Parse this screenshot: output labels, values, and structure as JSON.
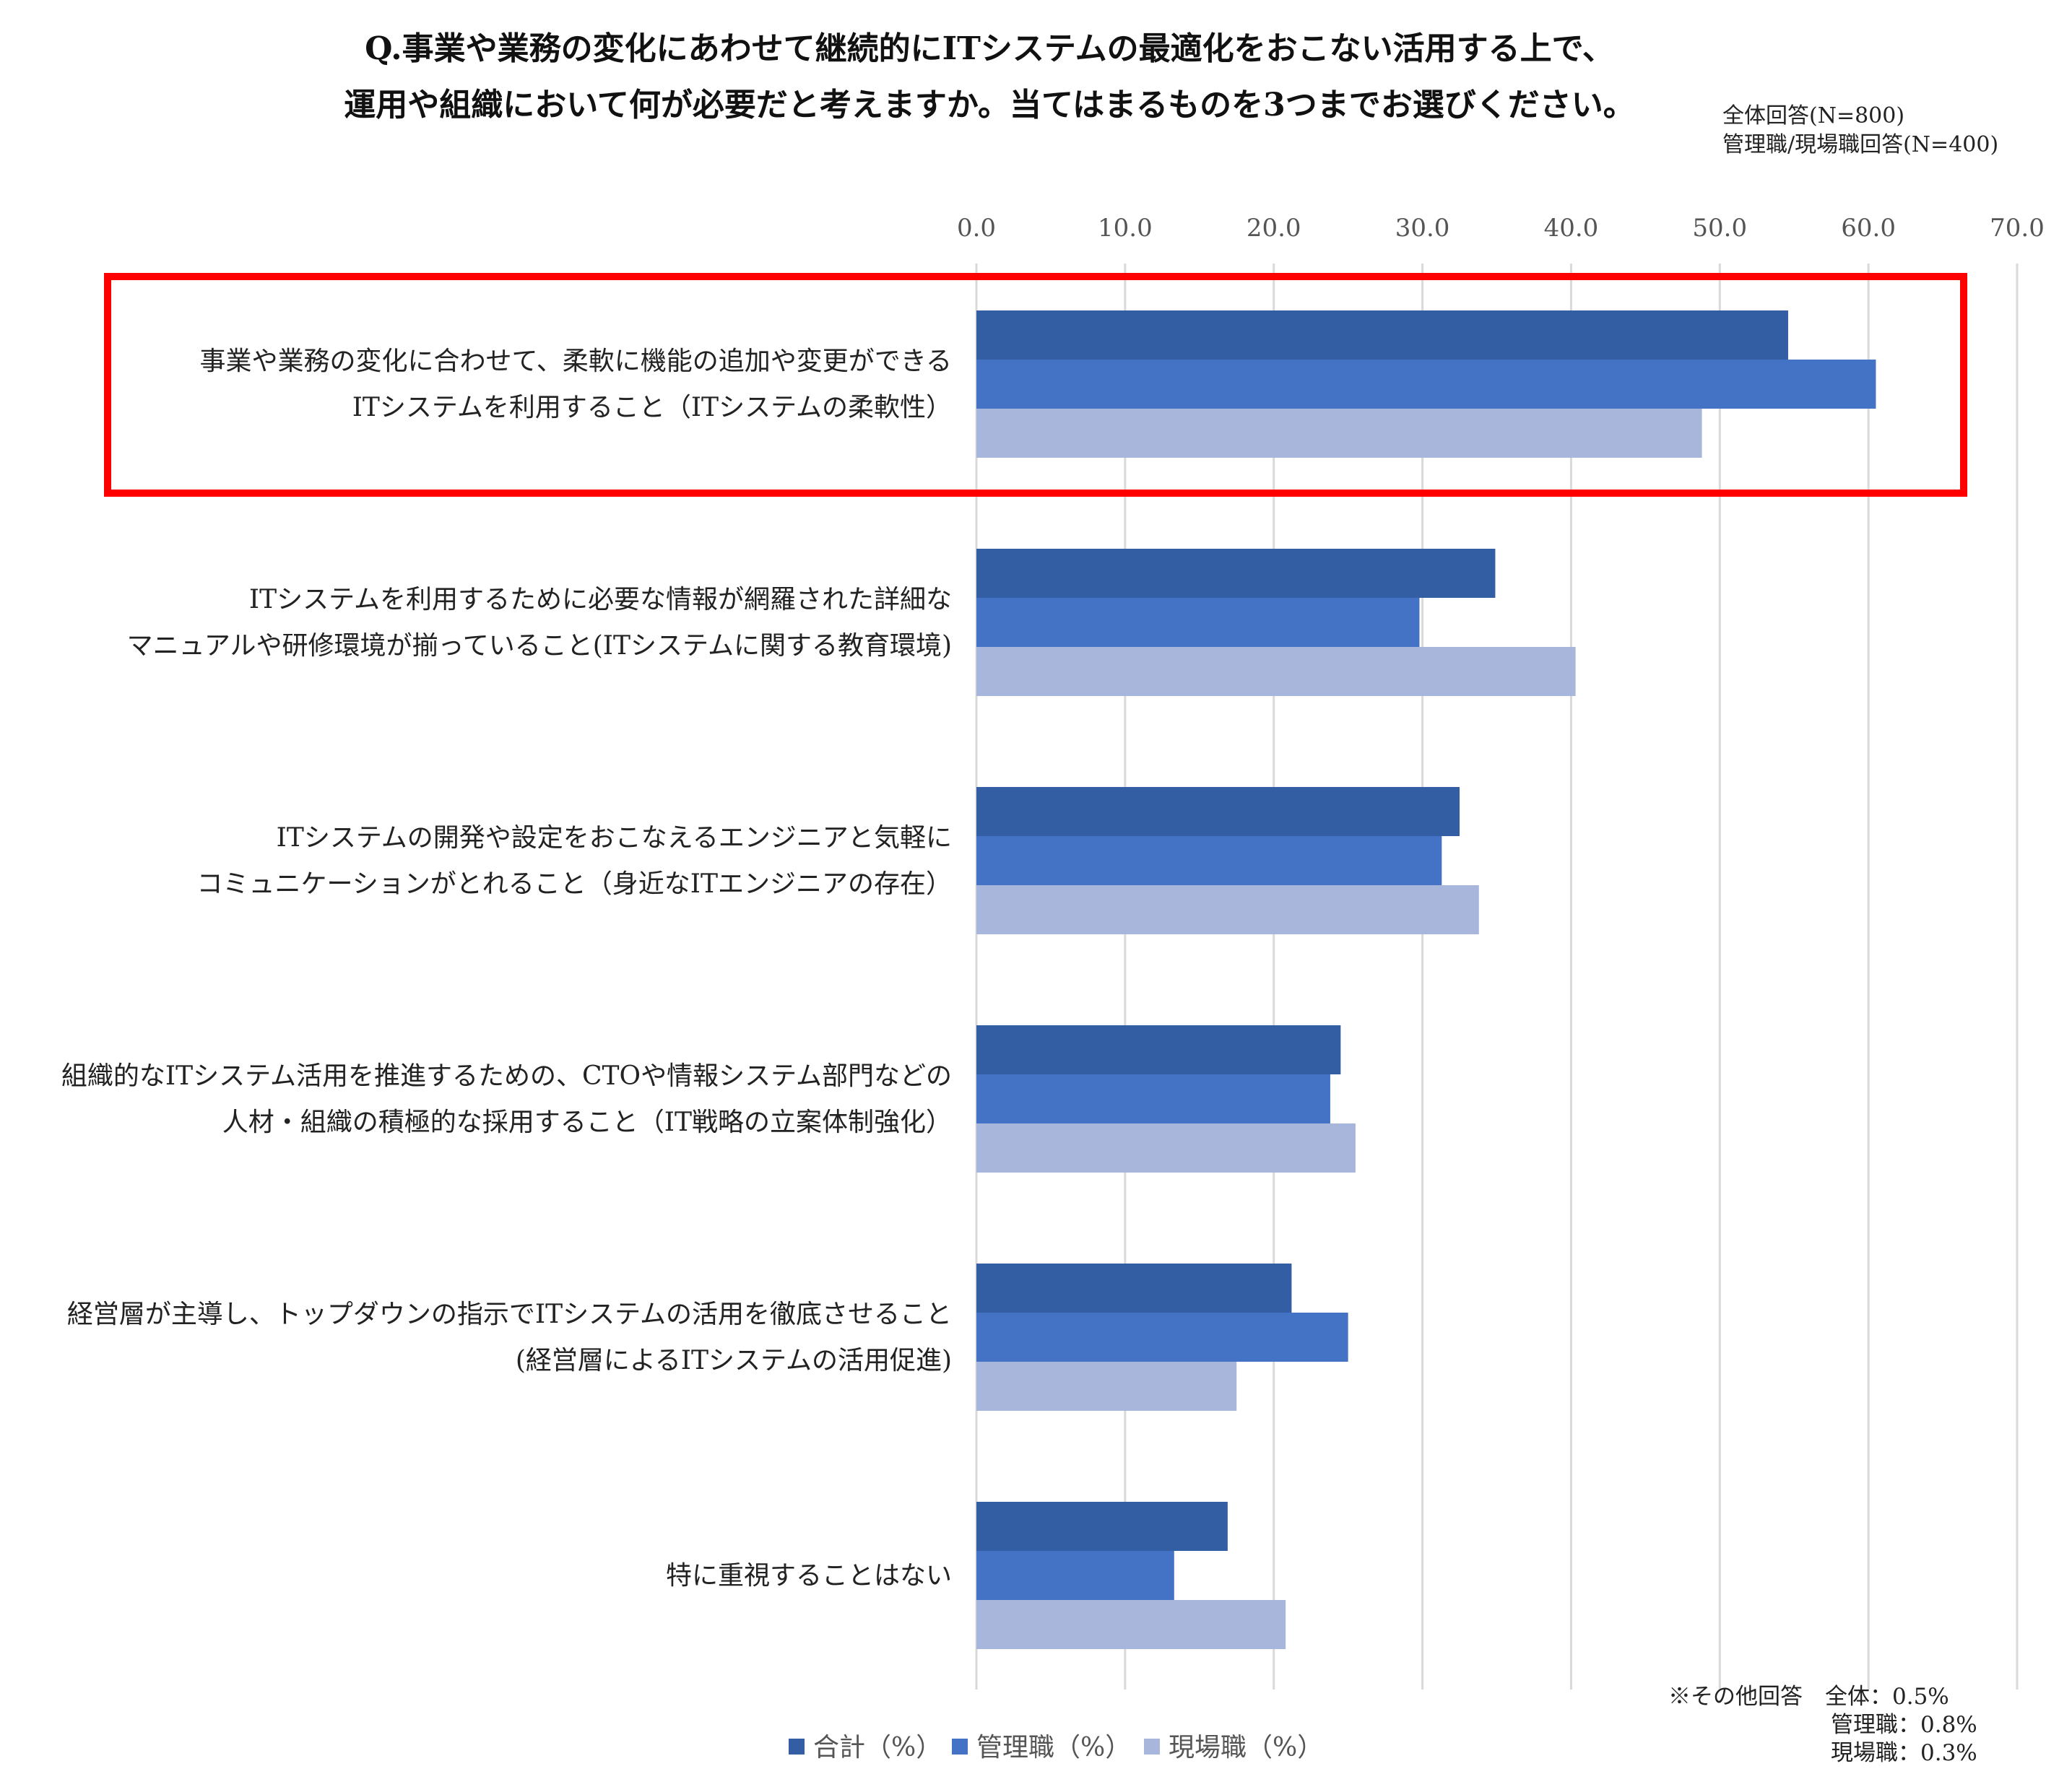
{
  "title_lines": [
    "Q.事業や業務の変化にあわせて継続的にITシステムの最適化をおこない活用する上で、",
    "運用や組織において何が必要だと考えますか。当てはまるものを3つまでお選びください。"
  ],
  "sample_note": [
    "全体回答(N=800)",
    "管理職/現場職回答(N=400)"
  ],
  "chart_data": {
    "type": "bar",
    "orientation": "horizontal",
    "xlim": [
      0,
      70
    ],
    "x_ticks": [
      "0.0",
      "10.0",
      "20.0",
      "30.0",
      "40.0",
      "50.0",
      "60.0",
      "70.0"
    ],
    "grid": true,
    "categories": [
      [
        "事業や業務の変化に合わせて、柔軟に機能の追加や変更ができる",
        "ITシステムを利用すること（ITシステムの柔軟性）"
      ],
      [
        "ITシステムを利用するために必要な情報が網羅された詳細な",
        "マニュアルや研修環境が揃っていること(ITシステムに関する教育環境)"
      ],
      [
        "ITシステムの開発や設定をおこなえるエンジニアと気軽に",
        "コミュニケーションがとれること（身近なITエンジニアの存在）"
      ],
      [
        "組織的なITシステム活用を推進するための、CTOや情報システム部門などの",
        "人材・組織の積極的な採用すること（IT戦略の立案体制強化）"
      ],
      [
        "経営層が主導し、トップダウンの指示でITシステムの活用を徹底させること",
        "(経営層によるITシステムの活用促進)"
      ],
      [
        "特に重視することはない"
      ]
    ],
    "series": [
      {
        "name": "合計（%）",
        "color": "#345EA3",
        "values": [
          54.6,
          34.9,
          32.5,
          24.5,
          21.2,
          16.9
        ]
      },
      {
        "name": "管理職（%）",
        "color": "#4472C4",
        "values": [
          60.5,
          29.8,
          31.3,
          23.8,
          25.0,
          13.3
        ]
      },
      {
        "name": "現場職（%）",
        "color": "#A9B6DC",
        "values": [
          48.8,
          40.3,
          33.8,
          25.5,
          17.5,
          20.8
        ]
      }
    ],
    "highlight_category_index": 0,
    "highlight_color": "#FF0000",
    "legend_position": "bottom"
  },
  "footnote": [
    "※その他回答　全体：0.5%",
    "管理職：0.8%",
    "現場職：0.3%"
  ]
}
